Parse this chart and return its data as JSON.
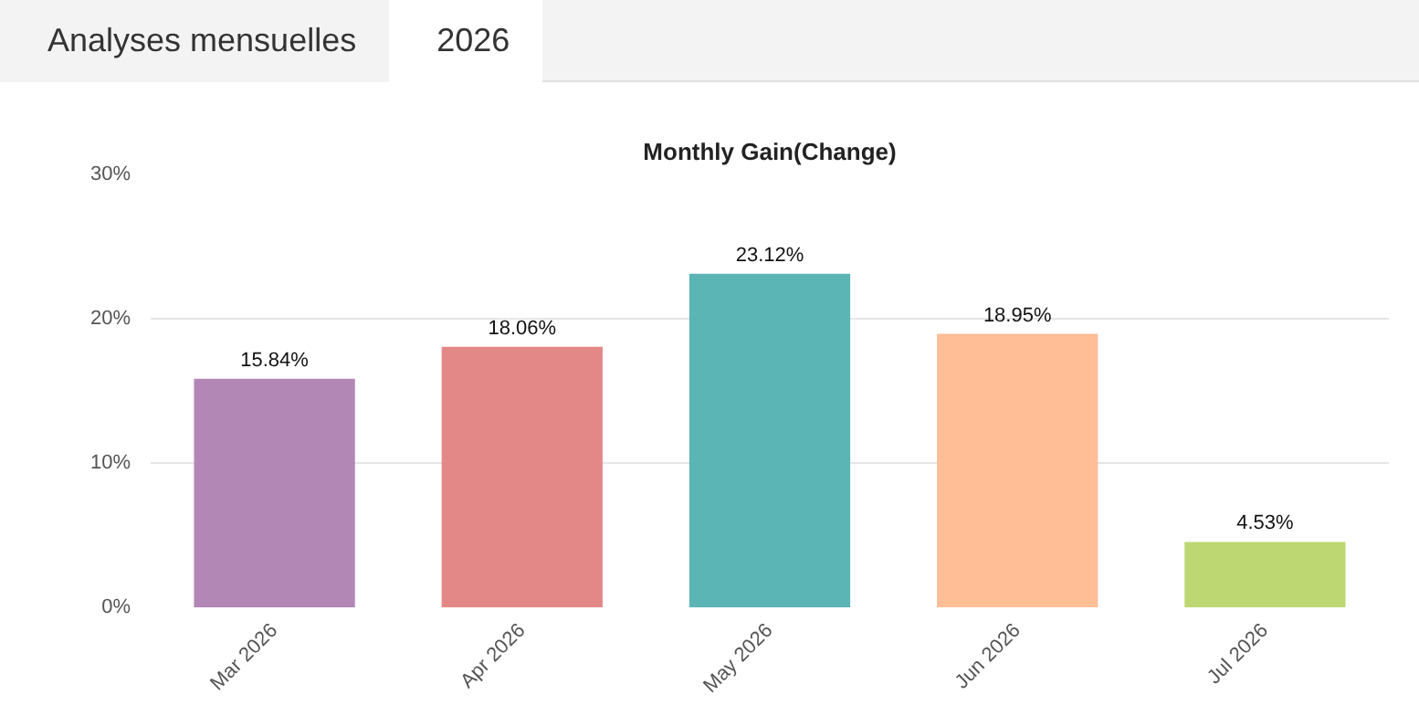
{
  "chart_data": {
    "type": "bar",
    "title": "Monthly Gain(Change)",
    "annotations": [
      "Analyses mensuelles",
      "2026"
    ],
    "categories": [
      "Mar 2026",
      "Apr 2026",
      "May 2026",
      "Jun 2026",
      "Jul 2026"
    ],
    "values": [
      15.84,
      18.06,
      23.12,
      18.95,
      4.53
    ],
    "colors": [
      "#b286b5",
      "#e38886",
      "#5bb5b5",
      "#ffbe96",
      "#bdd872"
    ],
    "value_labels": [
      "15.84%",
      "18.06%",
      "23.12%",
      "18.95%",
      "4.53%"
    ],
    "ylim": [
      0,
      30
    ],
    "yticks": [
      {
        "value": 0,
        "label": "0%"
      },
      {
        "value": 10,
        "label": "10%"
      },
      {
        "value": 20,
        "label": "20%"
      },
      {
        "value": 30,
        "label": "30%"
      }
    ],
    "grid": "y"
  }
}
